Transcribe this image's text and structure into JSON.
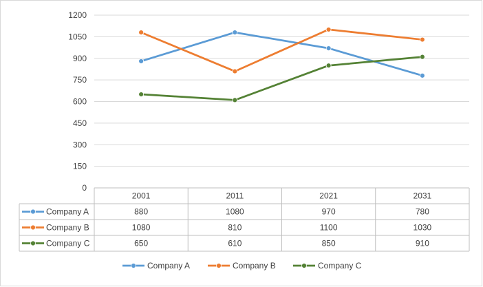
{
  "chart_data": {
    "type": "line",
    "title": "",
    "xlabel": "",
    "ylabel": "",
    "categories": [
      "2001",
      "2011",
      "2021",
      "2031"
    ],
    "ylim": [
      0,
      1200
    ],
    "yticks": [
      0,
      150,
      300,
      450,
      600,
      750,
      900,
      1050,
      1200
    ],
    "grid": true,
    "legend_position": "bottom",
    "data_table": true,
    "series": [
      {
        "name": "Company A",
        "values": [
          880,
          1080,
          970,
          780
        ],
        "color": "#5B9BD5"
      },
      {
        "name": "Company B",
        "values": [
          1080,
          810,
          1100,
          1030
        ],
        "color": "#ED7D31"
      },
      {
        "name": "Company C",
        "values": [
          650,
          610,
          850,
          910
        ],
        "color": "#548235"
      }
    ]
  }
}
